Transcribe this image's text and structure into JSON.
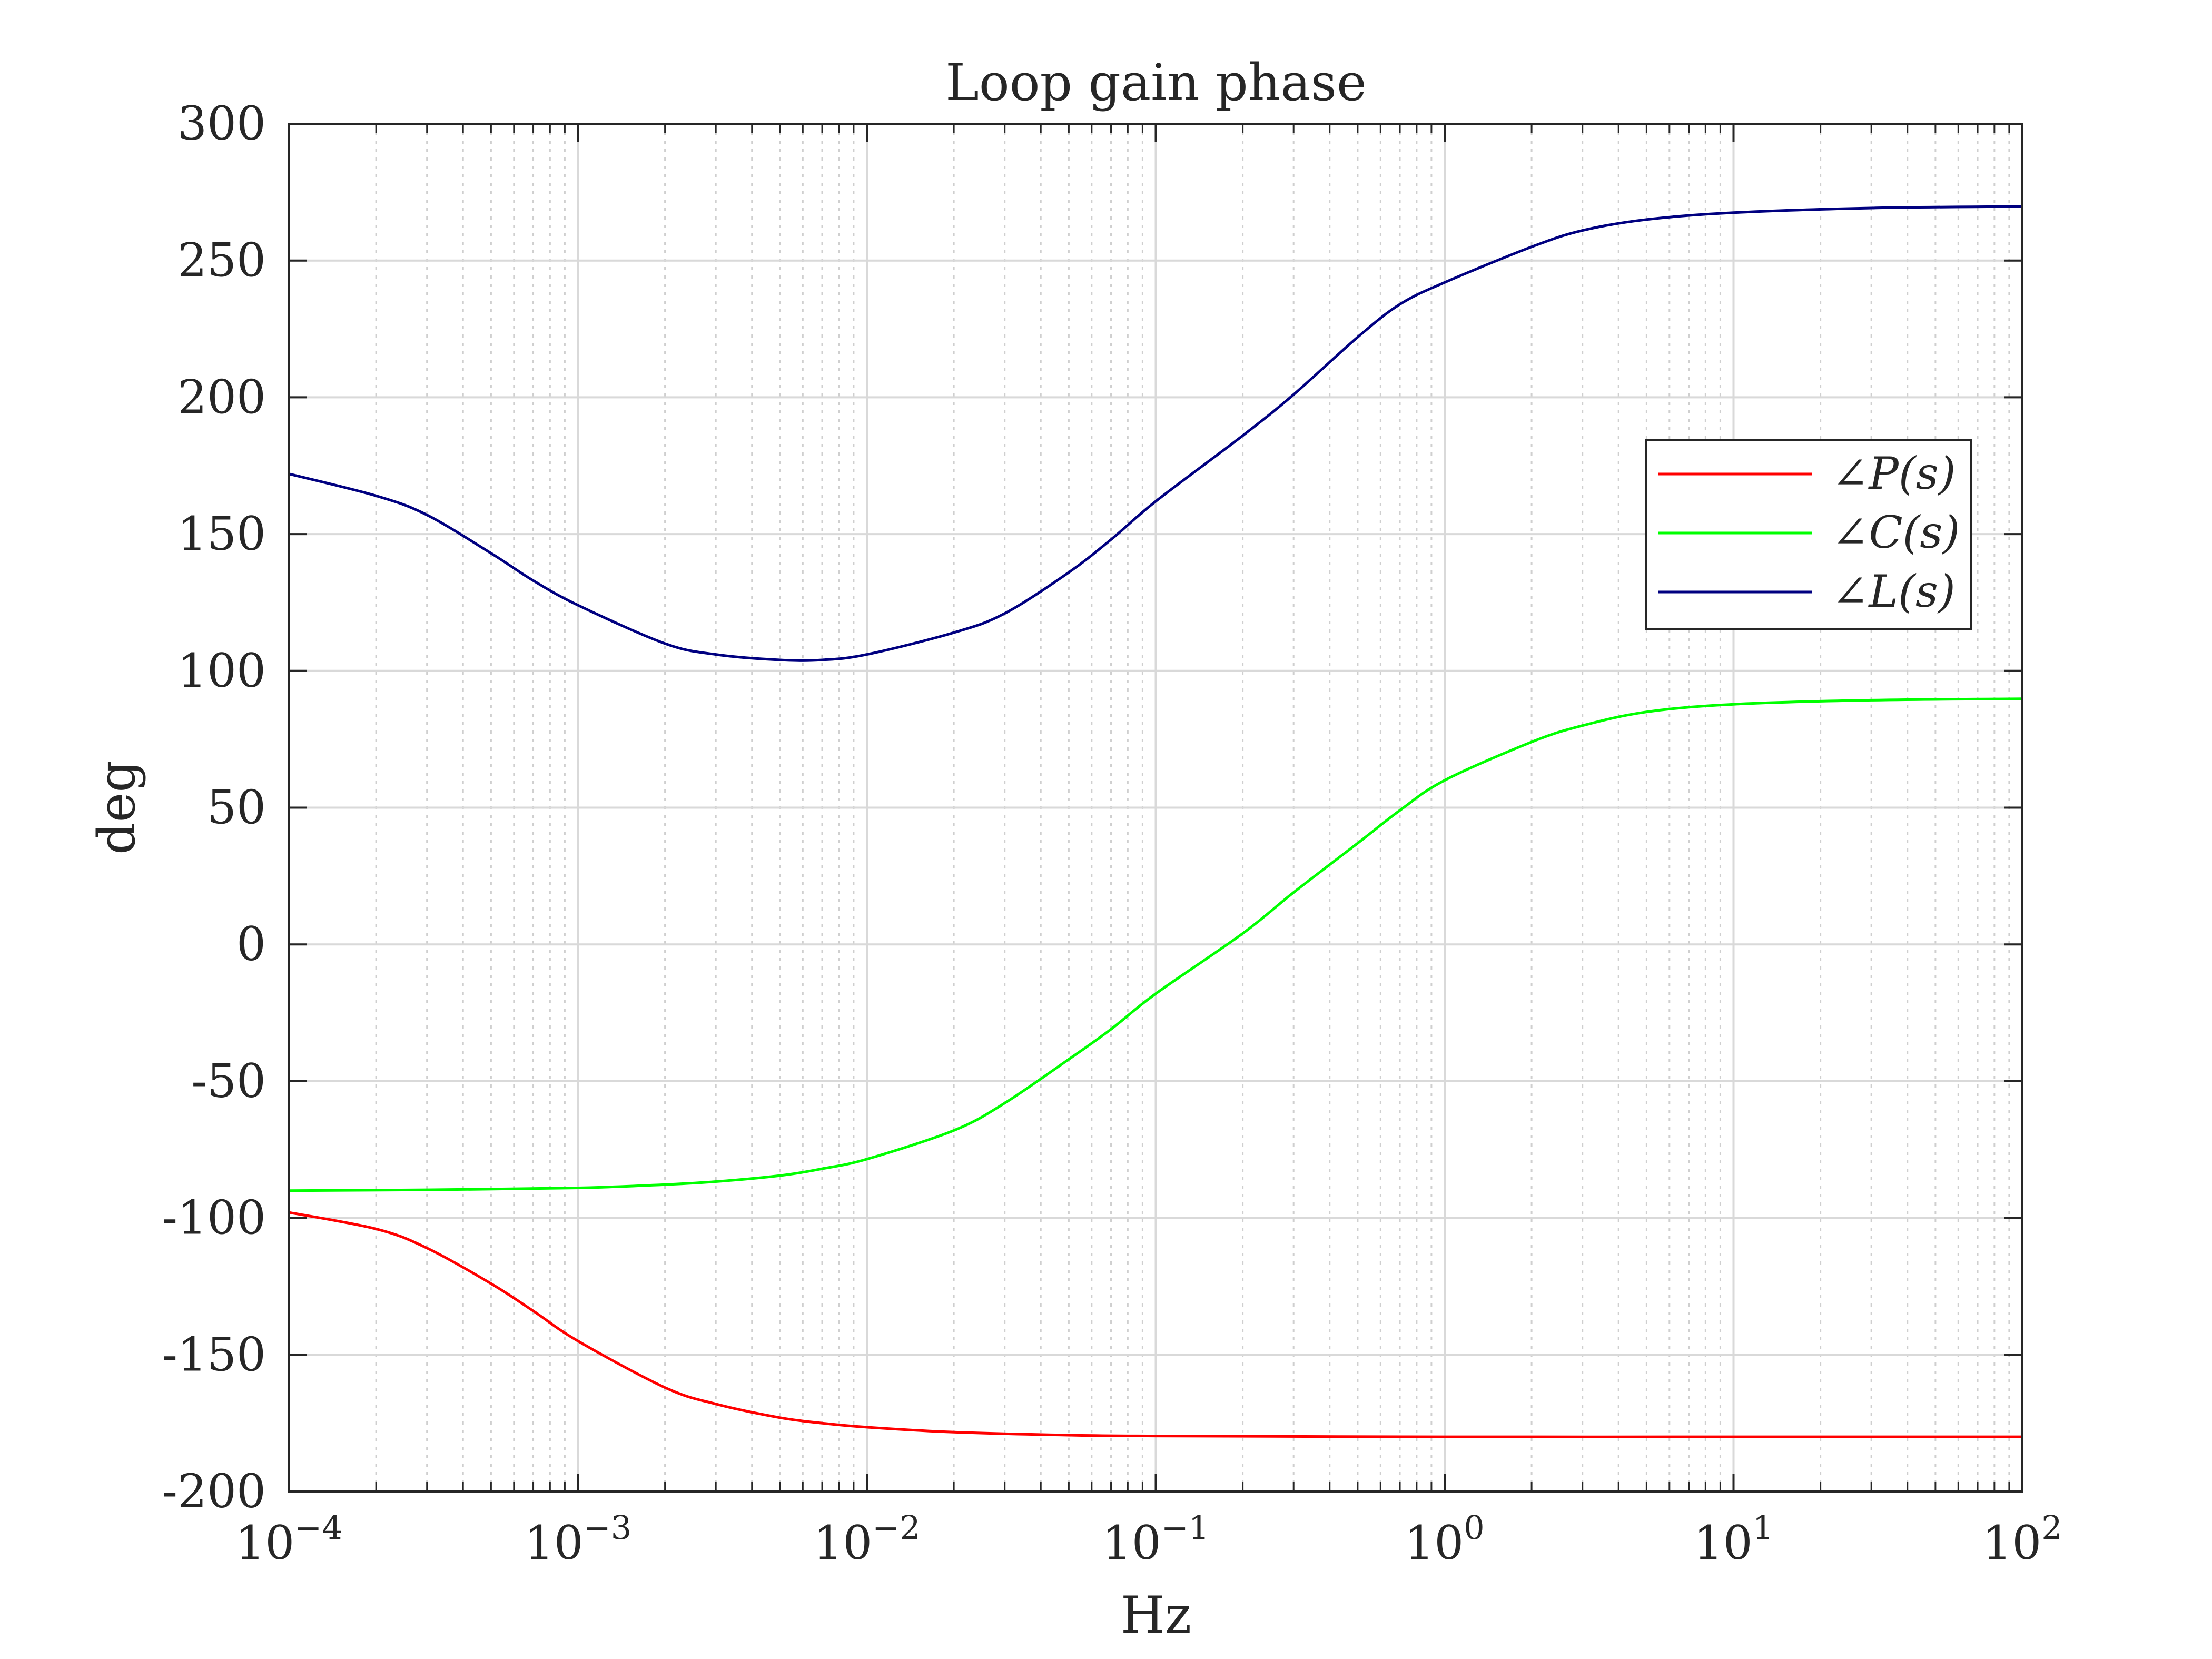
{
  "chart_data": {
    "type": "line",
    "title": "Loop gain phase",
    "xlabel": "Hz",
    "ylabel": "deg",
    "xscale": "log",
    "xlim": [
      0.0001,
      100
    ],
    "ylim": [
      -200,
      300
    ],
    "grid": true,
    "legend_position": "upper-right",
    "x_tick_labels": [
      {
        "base": "10",
        "exp": "−4"
      },
      {
        "base": "10",
        "exp": "−3"
      },
      {
        "base": "10",
        "exp": "−2"
      },
      {
        "base": "10",
        "exp": "−1"
      },
      {
        "base": "10",
        "exp": "0"
      },
      {
        "base": "10",
        "exp": "1"
      },
      {
        "base": "10",
        "exp": "2"
      }
    ],
    "y_tick_labels": [
      "300",
      "250",
      "200",
      "150",
      "100",
      "50",
      "0",
      "-50",
      "-100",
      "-150",
      "-200"
    ],
    "series": [
      {
        "name": "∠P(s)",
        "color": "#ff0000",
        "x": [
          0.0001,
          0.0002,
          0.0003,
          0.0005,
          0.0007,
          0.001,
          0.002,
          0.003,
          0.005,
          0.007,
          0.01,
          0.02,
          0.05,
          0.1,
          1,
          10,
          100
        ],
        "y": [
          -98,
          -104,
          -111,
          -124,
          -134,
          -145,
          -162,
          -168,
          -173,
          -175,
          -176.5,
          -178.3,
          -179.4,
          -179.7,
          -180,
          -180,
          -180
        ]
      },
      {
        "name": "∠C(s)",
        "color": "#00ff00",
        "x": [
          0.0001,
          0.0003,
          0.001,
          0.002,
          0.003,
          0.005,
          0.007,
          0.01,
          0.02,
          0.03,
          0.05,
          0.07,
          0.1,
          0.2,
          0.3,
          0.5,
          0.7,
          1,
          2,
          3,
          5,
          10,
          30,
          100
        ],
        "y": [
          -90,
          -89.7,
          -89,
          -87.8,
          -86.7,
          -84.5,
          -82,
          -78.5,
          -68,
          -58,
          -42,
          -31,
          -18,
          4,
          19,
          37,
          49,
          60,
          74,
          80,
          85,
          87.8,
          89.3,
          89.8
        ]
      },
      {
        "name": "∠L(s)",
        "color": "#000080",
        "x": [
          0.0001,
          0.0002,
          0.0003,
          0.0005,
          0.0007,
          0.001,
          0.002,
          0.003,
          0.005,
          0.007,
          0.01,
          0.02,
          0.03,
          0.05,
          0.07,
          0.1,
          0.2,
          0.3,
          0.5,
          0.7,
          1,
          2,
          3,
          5,
          10,
          30,
          100
        ],
        "y": [
          172,
          164,
          157,
          143,
          133,
          124,
          110,
          106,
          104,
          104,
          106,
          114,
          121,
          136,
          148,
          162,
          186,
          201,
          222,
          234,
          242,
          255,
          261,
          265,
          267.5,
          269.2,
          269.8
        ]
      }
    ]
  }
}
